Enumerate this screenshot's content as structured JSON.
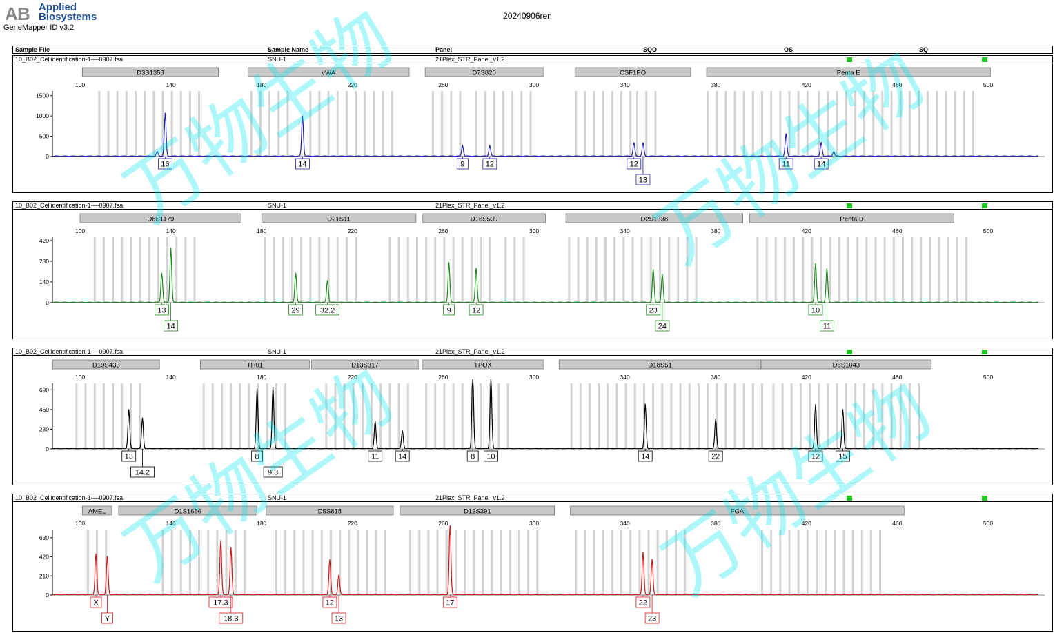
{
  "header": {
    "brand_line1": "Applied",
    "brand_line2": "Biosystems",
    "product": "GeneMapper ID v3.2",
    "report_title": "20240906ren",
    "watermark": "万物生物"
  },
  "column_headers": {
    "sample_file": "Sample File",
    "sample_name": "Sample Name",
    "panel": "Panel",
    "sqo": "SQO",
    "os": "OS",
    "sq": "SQ"
  },
  "colors": {
    "blue": "#1c1ca8",
    "green": "#1a8a1a",
    "black": "#000000",
    "red": "#d01818",
    "bin": "#d3d3d3",
    "marker_bar": "#c8c8c8",
    "indicator": "#1ec81e"
  },
  "chart_data": [
    {
      "type": "line",
      "dye": "blue",
      "sample_file": "10_B02_Cellidentification-1----0907.fsa",
      "sample_name": "SNU-1",
      "panel": "21Plex_STR_Panel_v1.2",
      "xlim": [
        88,
        522
      ],
      "x_ticks": [
        100,
        140,
        180,
        220,
        260,
        300,
        340,
        380,
        420,
        460,
        500
      ],
      "ylim": [
        0,
        1750
      ],
      "y_ticks": [
        0,
        500,
        1000,
        1500
      ],
      "markers": [
        {
          "name": "D3S1358",
          "start": 101,
          "end": 161
        },
        {
          "name": "vWA",
          "start": 174,
          "end": 245
        },
        {
          "name": "D7S820",
          "start": 252,
          "end": 304
        },
        {
          "name": "CSF1PO",
          "start": 318,
          "end": 369
        },
        {
          "name": "Penta E",
          "start": 376,
          "end": 501
        }
      ],
      "peaks": [
        {
          "x": 134,
          "height": 110,
          "label": ""
        },
        {
          "x": 137.5,
          "height": 1060,
          "label": "16"
        },
        {
          "x": 198,
          "height": 1000,
          "label": "14"
        },
        {
          "x": 268.5,
          "height": 260,
          "label": "9"
        },
        {
          "x": 280.5,
          "height": 260,
          "label": "12"
        },
        {
          "x": 344,
          "height": 330,
          "label": "12"
        },
        {
          "x": 348,
          "height": 330,
          "label": "13"
        },
        {
          "x": 411,
          "height": 550,
          "label": "11"
        },
        {
          "x": 426.5,
          "height": 340,
          "label": "14"
        },
        {
          "x": 432,
          "height": 110,
          "label": ""
        }
      ],
      "bins": [
        {
          "start": 108,
          "end": 152
        },
        {
          "start": 175,
          "end": 194
        },
        {
          "start": 201,
          "end": 240
        },
        {
          "start": 255,
          "end": 269
        },
        {
          "start": 274,
          "end": 300
        },
        {
          "start": 318,
          "end": 342
        },
        {
          "start": 345,
          "end": 356
        },
        {
          "start": 376,
          "end": 420
        },
        {
          "start": 425,
          "end": 495
        }
      ]
    },
    {
      "type": "line",
      "dye": "green",
      "sample_file": "10_B02_Cellidentification-1----0907.fsa",
      "sample_name": "SNU-1",
      "panel": "21Plex_STR_Panel_v1.2",
      "xlim": [
        88,
        522
      ],
      "x_ticks": [
        100,
        140,
        180,
        220,
        260,
        300,
        340,
        380,
        420,
        460,
        500
      ],
      "ylim": [
        0,
        480
      ],
      "y_ticks": [
        0,
        140,
        280,
        420
      ],
      "markers": [
        {
          "name": "D8S1179",
          "start": 100,
          "end": 171
        },
        {
          "name": "D21S11",
          "start": 180,
          "end": 248
        },
        {
          "name": "D16S539",
          "start": 251,
          "end": 305
        },
        {
          "name": "D2S1338",
          "start": 314,
          "end": 392
        },
        {
          "name": "Penta D",
          "start": 395,
          "end": 485
        }
      ],
      "peaks": [
        {
          "x": 136,
          "height": 200,
          "label": "13"
        },
        {
          "x": 140,
          "height": 370,
          "label": "14"
        },
        {
          "x": 195,
          "height": 200,
          "label": "29"
        },
        {
          "x": 209,
          "height": 150,
          "label": "32.2"
        },
        {
          "x": 262.5,
          "height": 270,
          "label": "9"
        },
        {
          "x": 274.5,
          "height": 230,
          "label": "12"
        },
        {
          "x": 352.5,
          "height": 225,
          "label": "23"
        },
        {
          "x": 356.5,
          "height": 190,
          "label": "24"
        },
        {
          "x": 424,
          "height": 265,
          "label": "10"
        },
        {
          "x": 429,
          "height": 230,
          "label": "11"
        }
      ],
      "bins": [
        {
          "start": 106,
          "end": 150
        },
        {
          "start": 181,
          "end": 224
        },
        {
          "start": 236,
          "end": 280
        },
        {
          "start": 287,
          "end": 296
        },
        {
          "start": 315,
          "end": 374
        },
        {
          "start": 398,
          "end": 490
        }
      ]
    },
    {
      "type": "line",
      "dye": "black",
      "sample_file": "10_B02_Cellidentification-1----0907.fsa",
      "sample_name": "SNU-1",
      "panel": "21Plex_STR_Panel_v1.2",
      "xlim": [
        88,
        522
      ],
      "x_ticks": [
        100,
        140,
        180,
        220,
        260,
        300,
        340,
        380,
        420,
        460,
        500
      ],
      "ylim": [
        0,
        830
      ],
      "y_ticks": [
        0,
        230,
        460,
        690
      ],
      "markers": [
        {
          "name": "D19S433",
          "start": 88,
          "end": 135
        },
        {
          "name": "TH01",
          "start": 153,
          "end": 201
        },
        {
          "name": "D13S317",
          "start": 202,
          "end": 249
        },
        {
          "name": "TPOX",
          "start": 251,
          "end": 304
        },
        {
          "name": "D18S51",
          "start": 311,
          "end": 400
        },
        {
          "name": "D6S1043",
          "start": 400,
          "end": 475
        }
      ],
      "peaks": [
        {
          "x": 121.5,
          "height": 460,
          "label": "13"
        },
        {
          "x": 127.5,
          "height": 360,
          "label": "14.2"
        },
        {
          "x": 178,
          "height": 700,
          "label": "8"
        },
        {
          "x": 185,
          "height": 720,
          "label": "9.3"
        },
        {
          "x": 230,
          "height": 320,
          "label": "11"
        },
        {
          "x": 242,
          "height": 210,
          "label": "14"
        },
        {
          "x": 273,
          "height": 870,
          "label": "8"
        },
        {
          "x": 281,
          "height": 840,
          "label": "10"
        },
        {
          "x": 349,
          "height": 520,
          "label": "14"
        },
        {
          "x": 380,
          "height": 350,
          "label": "22"
        },
        {
          "x": 424,
          "height": 520,
          "label": "12"
        },
        {
          "x": 436,
          "height": 460,
          "label": "15"
        }
      ],
      "bins": [
        {
          "start": 98,
          "end": 128
        },
        {
          "start": 154,
          "end": 190
        },
        {
          "start": 208,
          "end": 244
        },
        {
          "start": 252,
          "end": 290
        },
        {
          "start": 316,
          "end": 400
        },
        {
          "start": 405,
          "end": 470
        }
      ]
    },
    {
      "type": "line",
      "dye": "red",
      "sample_file": "10_B02_Cellidentification-1----0907.fsa",
      "sample_name": "SNU-1",
      "panel": "21Plex_STR_Panel_v1.2",
      "xlim": [
        88,
        522
      ],
      "x_ticks": [
        100,
        140,
        180,
        220,
        260,
        300,
        340,
        380,
        420,
        460,
        500
      ],
      "ylim": [
        0,
        780
      ],
      "y_ticks": [
        0,
        210,
        420,
        630
      ],
      "markers": [
        {
          "name": "AMEL",
          "start": 101,
          "end": 114
        },
        {
          "name": "D1S1656",
          "start": 117,
          "end": 178
        },
        {
          "name": "D5S818",
          "start": 182,
          "end": 238
        },
        {
          "name": "D12S391",
          "start": 241,
          "end": 309
        },
        {
          "name": "FGA",
          "start": 316,
          "end": 463
        }
      ],
      "peaks": [
        {
          "x": 107,
          "height": 450,
          "label": "X"
        },
        {
          "x": 112,
          "height": 420,
          "label": "Y"
        },
        {
          "x": 162,
          "height": 600,
          "label": "17.3"
        },
        {
          "x": 166.5,
          "height": 520,
          "label": "18.3"
        },
        {
          "x": 210,
          "height": 390,
          "label": "12"
        },
        {
          "x": 214,
          "height": 220,
          "label": "13"
        },
        {
          "x": 263,
          "height": 780,
          "label": "17"
        },
        {
          "x": 348,
          "height": 470,
          "label": "22"
        },
        {
          "x": 352,
          "height": 390,
          "label": "23"
        }
      ],
      "bins": [
        {
          "start": 103,
          "end": 114
        },
        {
          "start": 136,
          "end": 174
        },
        {
          "start": 186,
          "end": 234
        },
        {
          "start": 245,
          "end": 302
        },
        {
          "start": 318,
          "end": 366
        },
        {
          "start": 400,
          "end": 454
        }
      ]
    }
  ]
}
